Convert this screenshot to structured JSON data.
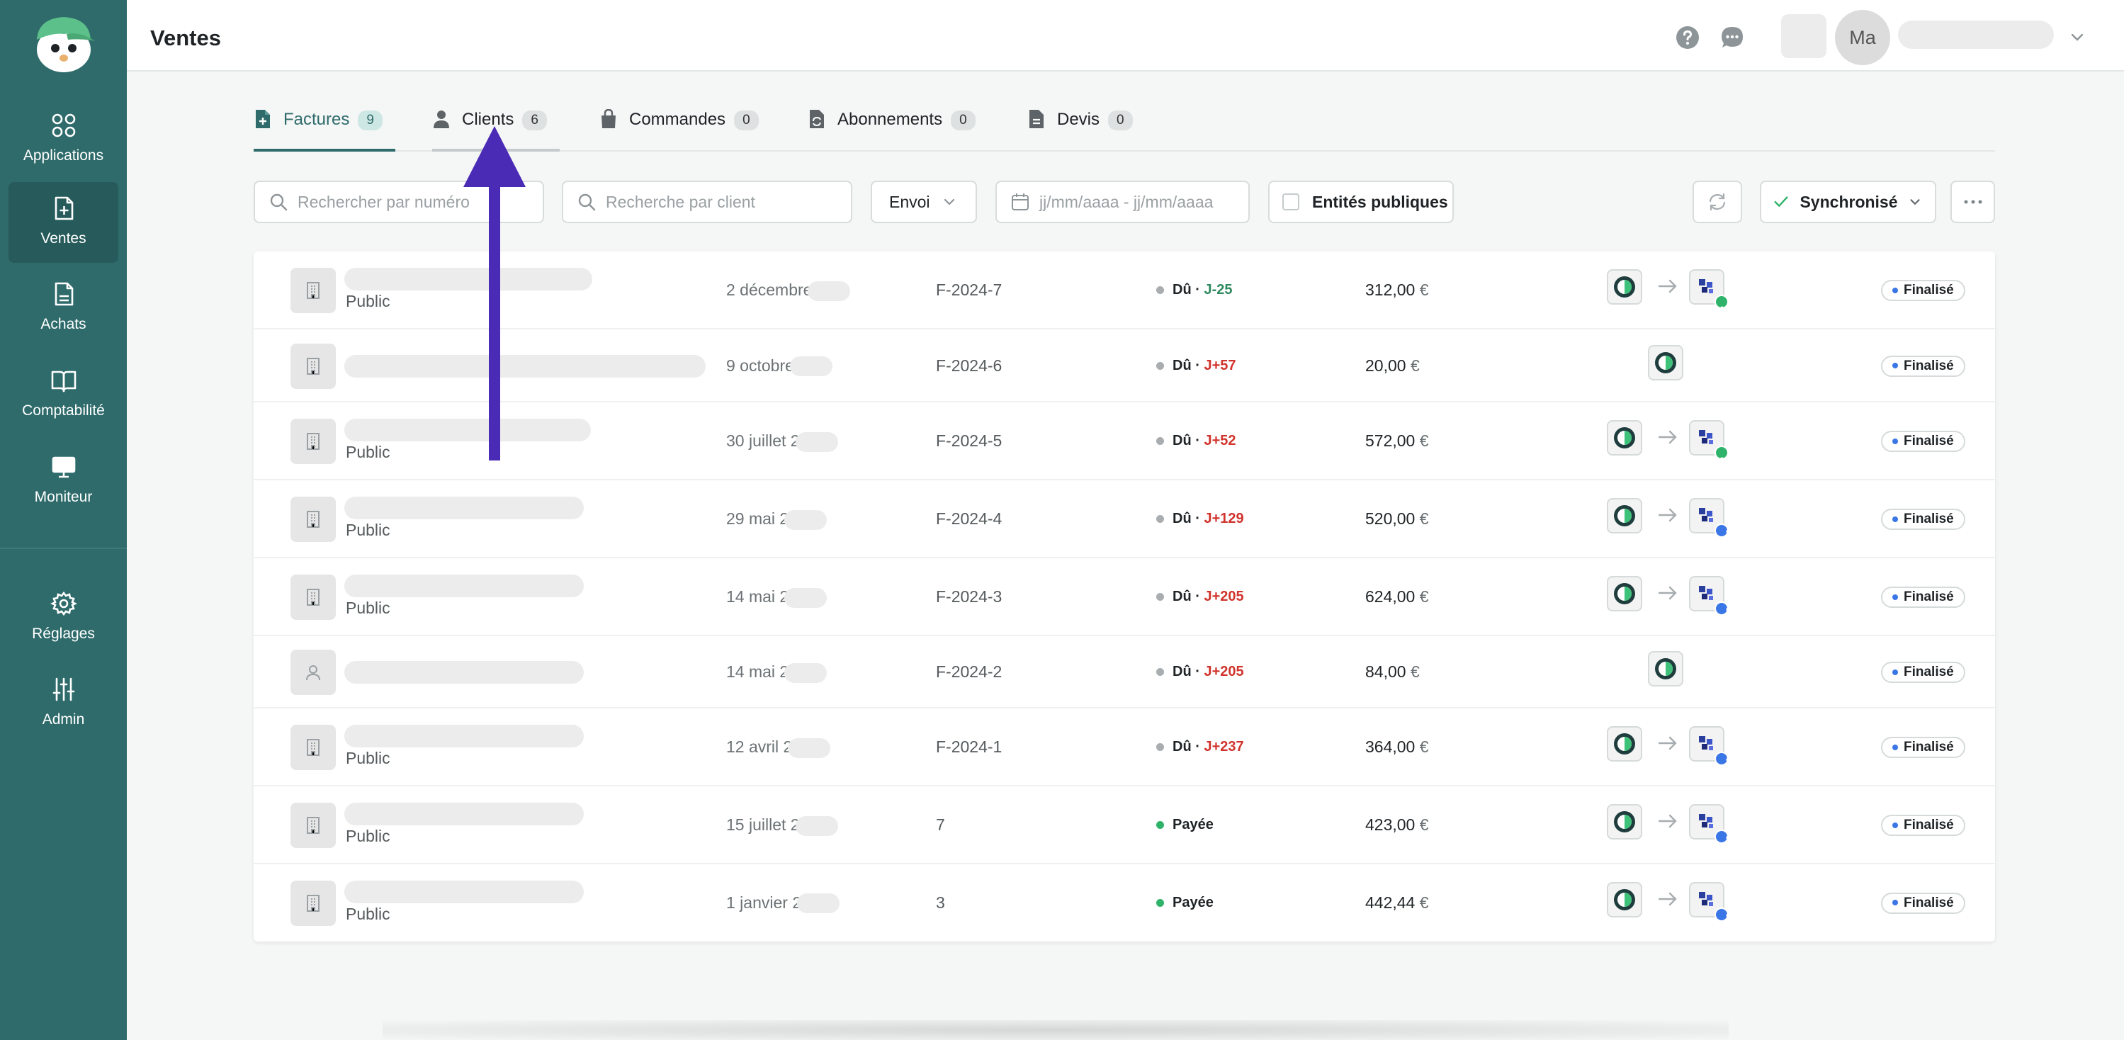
{
  "sidebar": {
    "items": [
      {
        "label": "Applications",
        "icon": "grid-icon"
      },
      {
        "label": "Ventes",
        "icon": "file-plus-icon"
      },
      {
        "label": "Achats",
        "icon": "file-icon"
      },
      {
        "label": "Comptabilité",
        "icon": "book-icon"
      },
      {
        "label": "Moniteur",
        "icon": "monitor-icon"
      },
      {
        "label": "Réglages",
        "icon": "gear-icon"
      },
      {
        "label": "Admin",
        "icon": "sliders-icon"
      }
    ],
    "active": "Ventes"
  },
  "header": {
    "title": "Ventes",
    "avatar_initials": "Ma"
  },
  "tabs": [
    {
      "label": "Factures",
      "count": "9",
      "icon": "invoice-icon"
    },
    {
      "label": "Clients",
      "count": "6",
      "icon": "person-icon"
    },
    {
      "label": "Commandes",
      "count": "0",
      "icon": "bag-icon"
    },
    {
      "label": "Abonnements",
      "count": "0",
      "icon": "refresh-file-icon"
    },
    {
      "label": "Devis",
      "count": "0",
      "icon": "quote-file-icon"
    }
  ],
  "filters": {
    "search_number_placeholder": "Rechercher par numéro",
    "search_client_placeholder": "Recherche par client",
    "envoi_label": "Envoi",
    "date_placeholder": "jj/mm/aaaa - jj/mm/aaaa",
    "public_entities_label": "Entités publiques",
    "sync_label": "Synchronisé"
  },
  "rows": [
    {
      "subtitle": "Public",
      "date": "2 décembre",
      "number": "F-2024-7",
      "status": "Dû",
      "delay": "J-25",
      "delay_color": "green",
      "amount": "312,00",
      "currency": "€",
      "sync": "synced",
      "state": "Finalisé"
    },
    {
      "subtitle": "",
      "date": "9 octobre",
      "number": "F-2024-6",
      "status": "Dû",
      "delay": "J+57",
      "delay_color": "red",
      "amount": "20,00",
      "currency": "€",
      "sync": "single",
      "state": "Finalisé"
    },
    {
      "subtitle": "Public",
      "date": "30 juillet 2",
      "number": "F-2024-5",
      "status": "Dû",
      "delay": "J+52",
      "delay_color": "red",
      "amount": "572,00",
      "currency": "€",
      "sync": "synced",
      "state": "Finalisé"
    },
    {
      "subtitle": "Public",
      "date": "29 mai 2",
      "number": "F-2024-4",
      "status": "Dû",
      "delay": "J+129",
      "delay_color": "red",
      "amount": "520,00",
      "currency": "€",
      "sync": "info",
      "state": "Finalisé"
    },
    {
      "subtitle": "Public",
      "date": "14 mai 2",
      "number": "F-2024-3",
      "status": "Dû",
      "delay": "J+205",
      "delay_color": "red",
      "amount": "624,00",
      "currency": "€",
      "sync": "info",
      "state": "Finalisé"
    },
    {
      "subtitle": "",
      "date": "14 mai 2",
      "number": "F-2024-2",
      "status": "Dû",
      "delay": "J+205",
      "delay_color": "red",
      "amount": "84,00",
      "currency": "€",
      "sync": "single",
      "state": "Finalisé",
      "person": true
    },
    {
      "subtitle": "Public",
      "date": "12 avril 2",
      "number": "F-2024-1",
      "status": "Dû",
      "delay": "J+237",
      "delay_color": "red",
      "amount": "364,00",
      "currency": "€",
      "sync": "info",
      "state": "Finalisé"
    },
    {
      "subtitle": "Public",
      "date": "15 juillet 2",
      "number": "7",
      "status": "Payée",
      "delay": "",
      "delay_color": "",
      "amount": "423,00",
      "currency": "€",
      "sync": "info",
      "state": "Finalisé"
    },
    {
      "subtitle": "Public",
      "date": "1 janvier 2",
      "number": "3",
      "status": "Payée",
      "delay": "",
      "delay_color": "",
      "amount": "442,44",
      "currency": "€",
      "sync": "info",
      "state": "Finalisé"
    }
  ],
  "colors": {
    "sidebar": "#2f6b6b",
    "accent": "#2f6b6b",
    "annotation_arrow": "#4a2bb5",
    "delay_ok": "#2e8a5e",
    "delay_late": "#d0342c",
    "paid": "#2fb36a"
  }
}
